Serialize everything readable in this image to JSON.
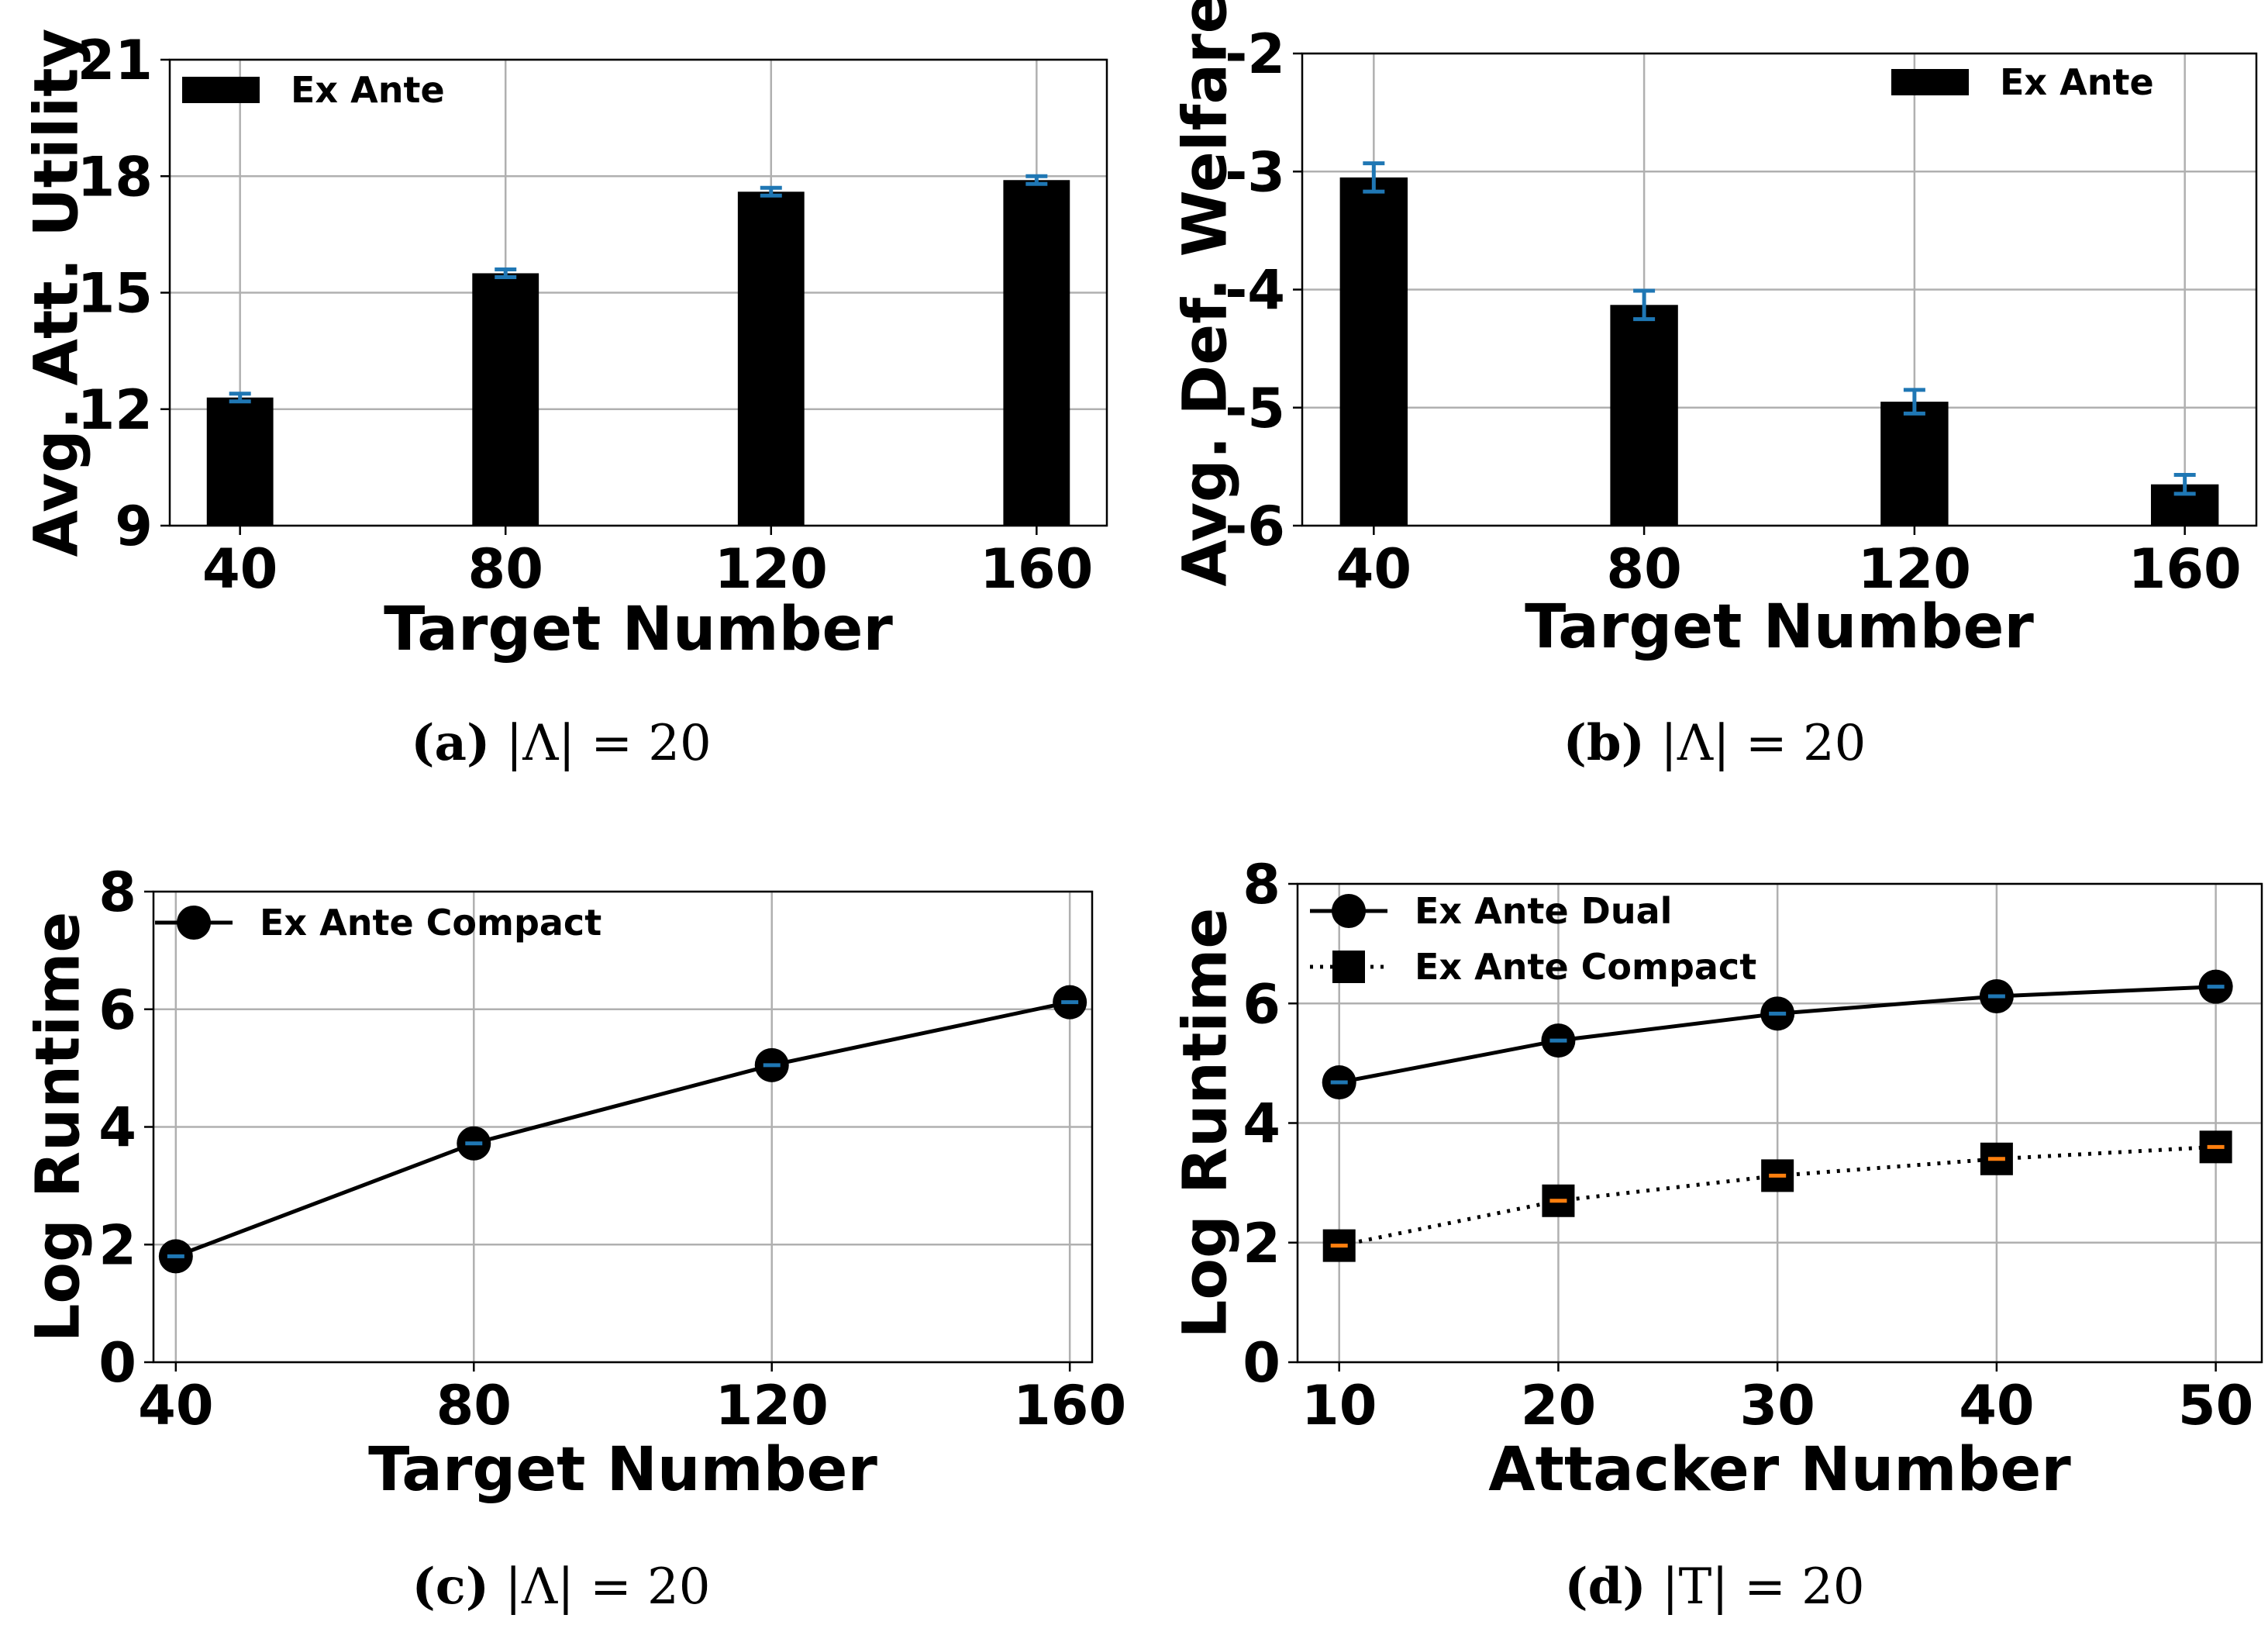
{
  "colors": {
    "bar": "#000000",
    "errorbar_blue": "#1f77b4",
    "errorbar_orange": "#ff7f0e",
    "line": "#000000",
    "grid": "#b0b0b0"
  },
  "chart_data": [
    {
      "id": "a",
      "type": "bar",
      "categories": [
        "40",
        "80",
        "120",
        "160"
      ],
      "series": [
        {
          "name": "Ex Ante",
          "values": [
            12.3,
            15.5,
            17.6,
            17.9
          ],
          "errors": [
            0.1,
            0.1,
            0.1,
            0.1
          ]
        }
      ],
      "xlabel": "Target Number",
      "ylabel": "Avg. Att. Utility",
      "ylim": [
        9,
        21
      ],
      "yticks": [
        "9",
        "12",
        "15",
        "18",
        "21"
      ],
      "ytick_values": [
        9,
        12,
        15,
        18,
        21
      ],
      "grid": true,
      "legend": "top-left",
      "caption_tag": "(a)",
      "caption_math": "|Λ| = 20"
    },
    {
      "id": "b",
      "type": "bar",
      "categories": [
        "40",
        "80",
        "120",
        "160"
      ],
      "series": [
        {
          "name": "Ex Ante",
          "values": [
            -3.05,
            -4.13,
            -4.95,
            -5.65
          ],
          "errors": [
            0.12,
            0.12,
            0.1,
            0.08
          ]
        }
      ],
      "xlabel": "Target Number",
      "ylabel": "Avg. Def. Welfare",
      "ylim": [
        -6,
        -2
      ],
      "yticks": [
        "-6",
        "-5",
        "-4",
        "-3",
        "-2"
      ],
      "ytick_values": [
        -6,
        -5,
        -4,
        -3,
        -2
      ],
      "grid": true,
      "legend": "top-right",
      "caption_tag": "(b)",
      "caption_math": "|Λ| = 20"
    },
    {
      "id": "c",
      "type": "line",
      "x": [
        40,
        80,
        120,
        160
      ],
      "xticks": [
        "40",
        "80",
        "120",
        "160"
      ],
      "series": [
        {
          "name": "Ex Ante Compact",
          "values": [
            1.8,
            3.72,
            5.05,
            6.12
          ],
          "marker": "circle",
          "style": "solid"
        }
      ],
      "xlabel": "Target Number",
      "ylabel": "Log Runtime",
      "xlim": [
        37,
        163
      ],
      "ylim": [
        0,
        8
      ],
      "yticks": [
        "0",
        "2",
        "4",
        "6",
        "8"
      ],
      "ytick_values": [
        0,
        2,
        4,
        6,
        8
      ],
      "grid": true,
      "legend": "top-left",
      "caption_tag": "(c)",
      "caption_math": "|Λ| = 20"
    },
    {
      "id": "d",
      "type": "line",
      "x": [
        10,
        20,
        30,
        40,
        50
      ],
      "xticks": [
        "10",
        "20",
        "30",
        "40",
        "50"
      ],
      "series": [
        {
          "name": "Ex Ante Dual",
          "values": [
            4.68,
            5.38,
            5.83,
            6.12,
            6.28
          ],
          "marker": "circle",
          "style": "solid"
        },
        {
          "name": "Ex Ante Compact",
          "values": [
            1.95,
            2.7,
            3.12,
            3.4,
            3.6
          ],
          "marker": "square",
          "style": "dotted"
        }
      ],
      "xlabel": "Attacker Number",
      "ylabel": "Log Runtime",
      "xlim": [
        8.1,
        52.1
      ],
      "ylim": [
        0,
        8
      ],
      "yticks": [
        "0",
        "2",
        "4",
        "6",
        "8"
      ],
      "ytick_values": [
        0,
        2,
        4,
        6,
        8
      ],
      "grid": true,
      "legend": "top-left",
      "caption_tag": "(d)",
      "caption_math": "|T| = 20"
    }
  ]
}
